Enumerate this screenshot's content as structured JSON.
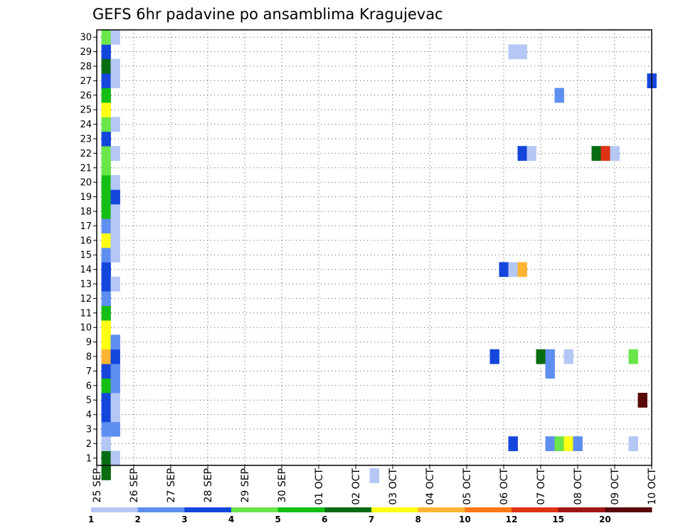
{
  "chart_data": {
    "type": "heatmap",
    "title": "GEFS 6hr padavine po ansamblima Kragujevac",
    "xlabel": "",
    "ylabel": "",
    "x_ticks": [
      "25 SEP",
      "26 SEP",
      "27 SEP",
      "28 SEP",
      "29 SEP",
      "30 SEP",
      "01 OCT",
      "02 OCT",
      "03 OCT",
      "04 OCT",
      "05 OCT",
      "06 OCT",
      "07 OCT",
      "08 OCT",
      "09 OCT",
      "10 OCT"
    ],
    "y_ticks": [
      "1",
      "2",
      "3",
      "4",
      "5",
      "6",
      "7",
      "8",
      "9",
      "10",
      "11",
      "12",
      "13",
      "14",
      "15",
      "16",
      "17",
      "18",
      "19",
      "20",
      "21",
      "22",
      "23",
      "24",
      "25",
      "26",
      "27",
      "28",
      "29",
      "30"
    ],
    "xlim": [
      0,
      60
    ],
    "ylim": [
      0.5,
      30.5
    ],
    "grid": true,
    "colorbar": {
      "labels": [
        "1",
        "2",
        "3",
        "4",
        "5",
        "6",
        "7",
        "8",
        "10",
        "12",
        "15",
        "20"
      ],
      "colors": [
        "#b4c7f5",
        "#5e8ef0",
        "#1446dc",
        "#6ae64a",
        "#14be14",
        "#086c10",
        "#ffff14",
        "#ffb432",
        "#ff7814",
        "#e03214",
        "#a01414",
        "#5a0808"
      ]
    },
    "cells": [
      {
        "x": 1,
        "y": 0,
        "c": 6
      },
      {
        "x": 1,
        "y": 1,
        "c": 6
      },
      {
        "x": 1,
        "y": 2,
        "c": 1
      },
      {
        "x": 1,
        "y": 3,
        "c": 2
      },
      {
        "x": 1,
        "y": 4,
        "c": 3
      },
      {
        "x": 1,
        "y": 5,
        "c": 3
      },
      {
        "x": 1,
        "y": 6,
        "c": 5
      },
      {
        "x": 1,
        "y": 7,
        "c": 3
      },
      {
        "x": 1,
        "y": 8,
        "c": 7
      },
      {
        "x": 1,
        "y": 9,
        "c": 7
      },
      {
        "x": 1,
        "y": 10,
        "c": 7
      },
      {
        "x": 1,
        "y": 11,
        "c": 5
      },
      {
        "x": 1,
        "y": 12,
        "c": 2
      },
      {
        "x": 1,
        "y": 13,
        "c": 3
      },
      {
        "x": 1,
        "y": 14,
        "c": 3
      },
      {
        "x": 1,
        "y": 15,
        "c": 2
      },
      {
        "x": 1,
        "y": 16,
        "c": 7
      },
      {
        "x": 1,
        "y": 17,
        "c": 2
      },
      {
        "x": 1,
        "y": 18,
        "c": 5
      },
      {
        "x": 1,
        "y": 19,
        "c": 5
      },
      {
        "x": 1,
        "y": 20,
        "c": 5
      },
      {
        "x": 1,
        "y": 21,
        "c": 4
      },
      {
        "x": 1,
        "y": 22,
        "c": 4
      },
      {
        "x": 1,
        "y": 23,
        "c": 3
      },
      {
        "x": 1,
        "y": 24,
        "c": 4
      },
      {
        "x": 1,
        "y": 25,
        "c": 7
      },
      {
        "x": 1,
        "y": 26,
        "c": 5
      },
      {
        "x": 1,
        "y": 27,
        "c": 3
      },
      {
        "x": 1,
        "y": 28,
        "c": 6
      },
      {
        "x": 1,
        "y": 29,
        "c": 3
      },
      {
        "x": 1,
        "y": 30,
        "c": 4
      },
      {
        "x": 1,
        "y": 8,
        "c": 8
      },
      {
        "x": 2,
        "y": 1,
        "c": 1
      },
      {
        "x": 2,
        "y": 3,
        "c": 2
      },
      {
        "x": 2,
        "y": 4,
        "c": 1
      },
      {
        "x": 2,
        "y": 5,
        "c": 1
      },
      {
        "x": 2,
        "y": 6,
        "c": 2
      },
      {
        "x": 2,
        "y": 7,
        "c": 2
      },
      {
        "x": 2,
        "y": 8,
        "c": 3
      },
      {
        "x": 2,
        "y": 9,
        "c": 2
      },
      {
        "x": 2,
        "y": 13,
        "c": 1
      },
      {
        "x": 2,
        "y": 15,
        "c": 1
      },
      {
        "x": 2,
        "y": 16,
        "c": 1
      },
      {
        "x": 2,
        "y": 17,
        "c": 1
      },
      {
        "x": 2,
        "y": 18,
        "c": 1
      },
      {
        "x": 2,
        "y": 19,
        "c": 3
      },
      {
        "x": 2,
        "y": 20,
        "c": 1
      },
      {
        "x": 2,
        "y": 22,
        "c": 1
      },
      {
        "x": 2,
        "y": 24,
        "c": 1
      },
      {
        "x": 2,
        "y": 27,
        "c": 1
      },
      {
        "x": 2,
        "y": 28,
        "c": 1
      },
      {
        "x": 2,
        "y": 30,
        "c": 1
      },
      {
        "x": 30,
        "y": -0.2,
        "c": 1
      },
      {
        "x": 43,
        "y": 8,
        "c": 3
      },
      {
        "x": 44,
        "y": 14,
        "c": 3
      },
      {
        "x": 45,
        "y": 14,
        "c": 1
      },
      {
        "x": 45,
        "y": 2,
        "c": 3
      },
      {
        "x": 46,
        "y": 14,
        "c": 8
      },
      {
        "x": 45,
        "y": 29,
        "c": 1
      },
      {
        "x": 46,
        "y": 29,
        "c": 1
      },
      {
        "x": 46,
        "y": 22,
        "c": 3
      },
      {
        "x": 47,
        "y": 22,
        "c": 1
      },
      {
        "x": 48,
        "y": 8,
        "c": 6
      },
      {
        "x": 49,
        "y": 8,
        "c": 2
      },
      {
        "x": 49,
        "y": 7,
        "c": 2
      },
      {
        "x": 49,
        "y": 2,
        "c": 2
      },
      {
        "x": 50,
        "y": 2,
        "c": 4
      },
      {
        "x": 51,
        "y": 2,
        "c": 7
      },
      {
        "x": 52,
        "y": 2,
        "c": 2
      },
      {
        "x": 50,
        "y": 26,
        "c": 2
      },
      {
        "x": 51,
        "y": 8,
        "c": 1
      },
      {
        "x": 54,
        "y": 22,
        "c": 6
      },
      {
        "x": 55,
        "y": 22,
        "c": 10
      },
      {
        "x": 56,
        "y": 22,
        "c": 1
      },
      {
        "x": 58,
        "y": 8,
        "c": 4
      },
      {
        "x": 58,
        "y": 2,
        "c": 1
      },
      {
        "x": 59,
        "y": 5,
        "c": 12
      },
      {
        "x": 60,
        "y": 27,
        "c": 3
      }
    ]
  }
}
